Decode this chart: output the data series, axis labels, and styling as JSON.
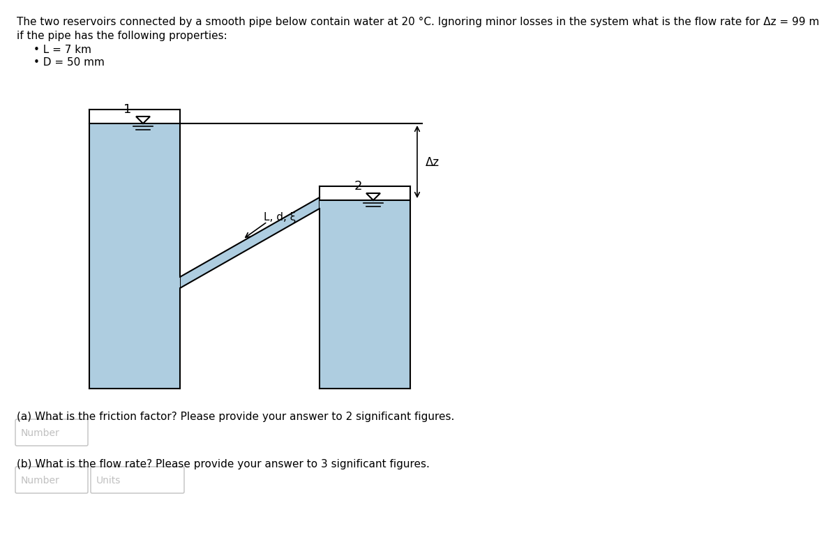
{
  "background_color": "#ffffff",
  "title_line1": "The two reservoirs connected by a smooth pipe below contain water at 20 °C. Ignoring minor losses in the system what is the flow rate for Δz = 99 m",
  "title_line2": "if the pipe has the following properties:",
  "bullet1": "L = 7 km",
  "bullet2": "D = 50 mm",
  "question_a": "(a) What is the friction factor? Please provide your answer to 2 significant figures.",
  "question_b": "(b) What is the flow rate? Please provide your answer to 3 significant figures.",
  "water_color": "#aecde0",
  "border_color": "#000000",
  "label1": "1",
  "label2": "2",
  "label_pipe": "L, d, ξ",
  "label_dz": "Δz",
  "lw": 1.5
}
